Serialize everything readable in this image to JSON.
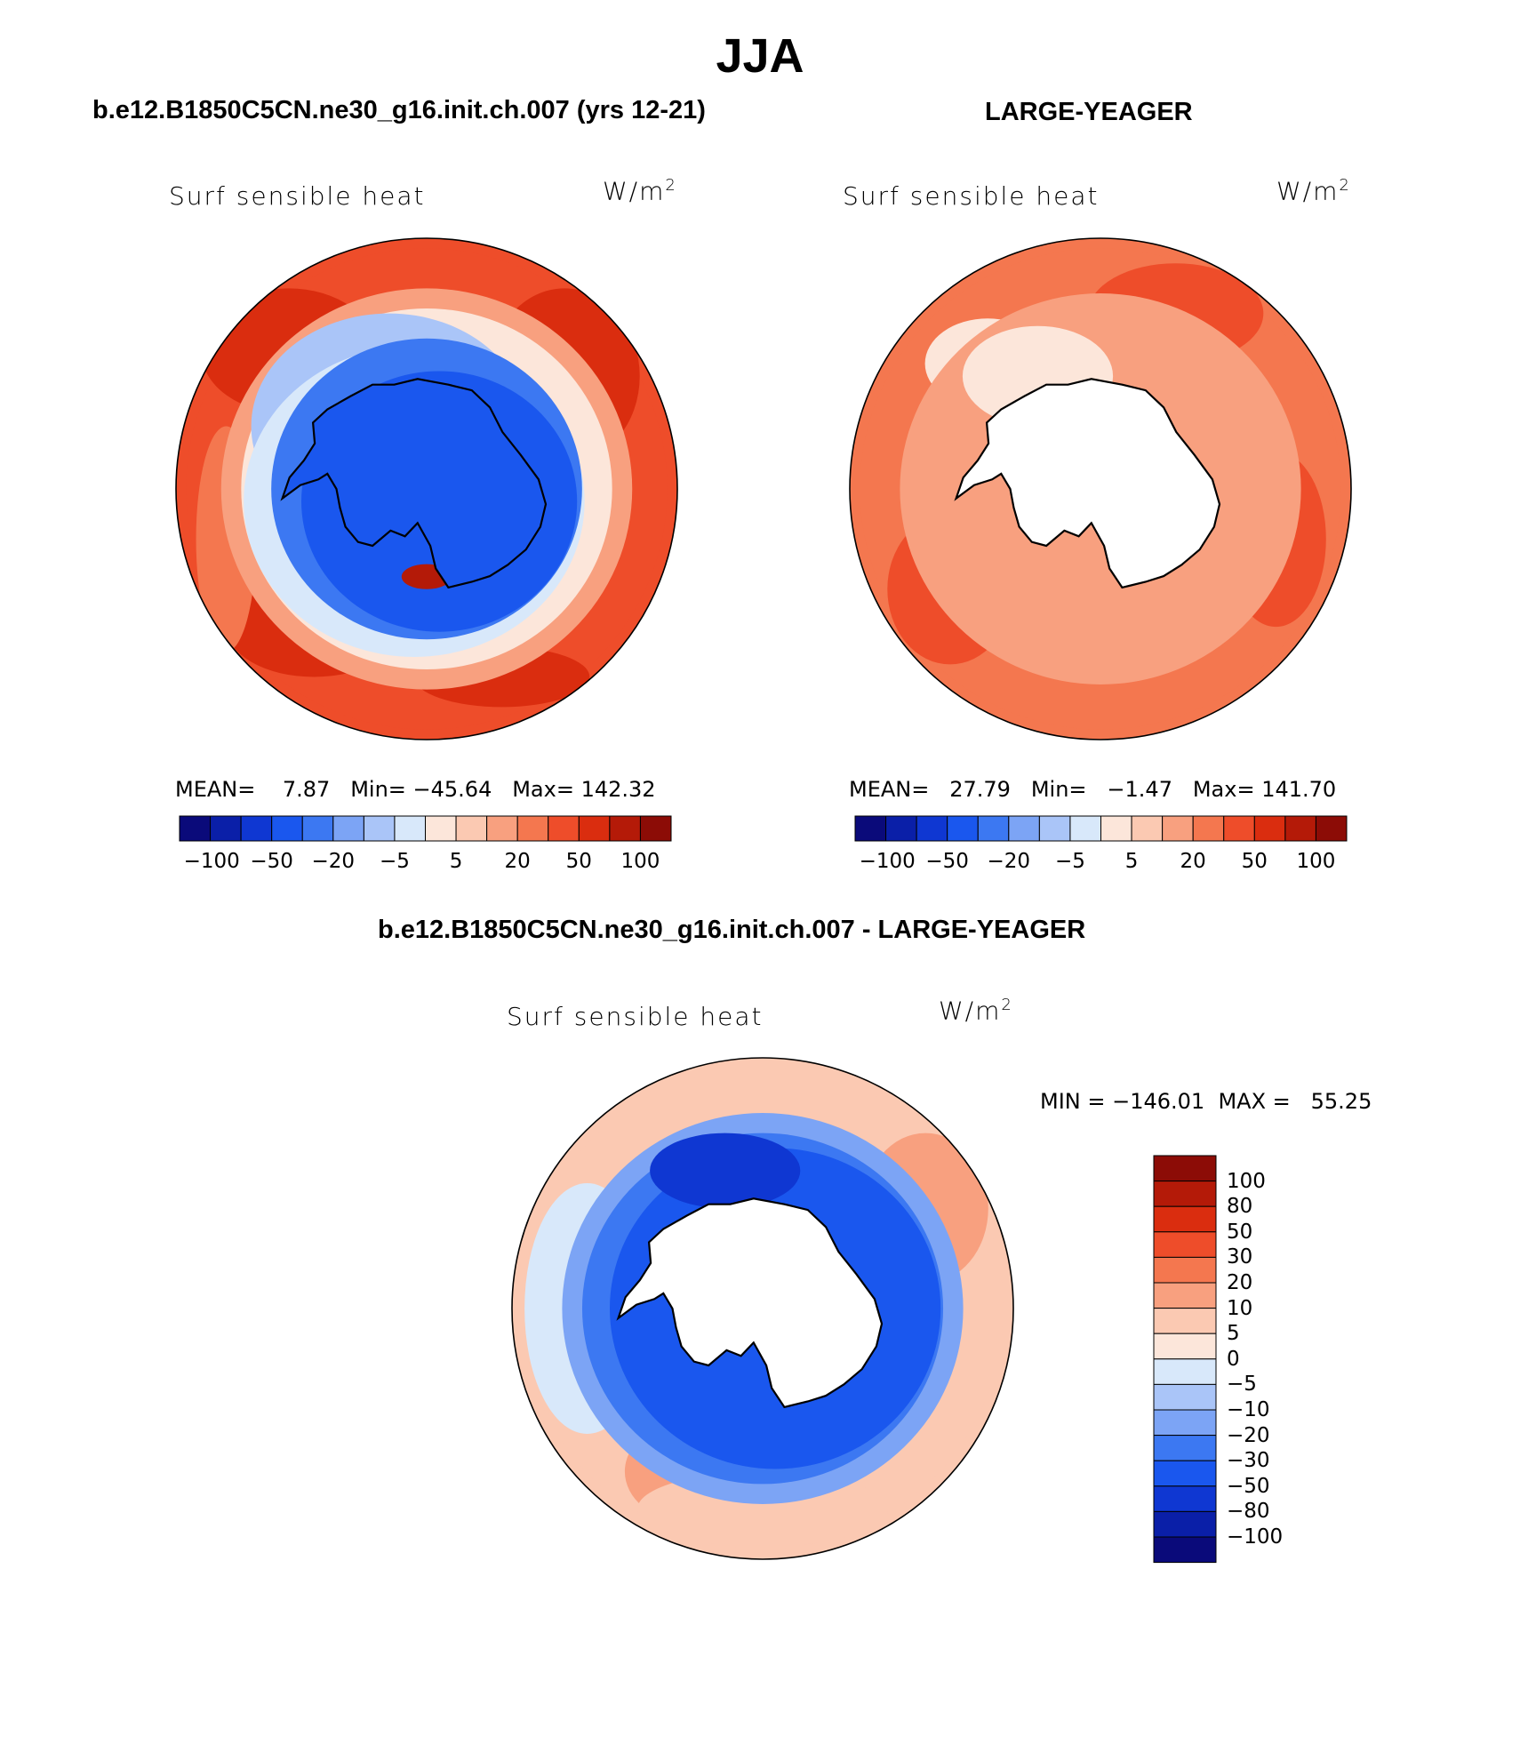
{
  "figure": {
    "season_title": "JJA",
    "colors": {
      "palette": [
        "#0a0a7a",
        "#0a1fa8",
        "#0f37d2",
        "#1a57ee",
        "#3c78f2",
        "#7ca4f5",
        "#aac5f8",
        "#d8e8fa",
        "#fce6da",
        "#fbc9b2",
        "#f8a07f",
        "#f4774f",
        "#ee4d2a",
        "#da2d0f",
        "#b41a08",
        "#8c0c06"
      ],
      "land": "#ffffff",
      "coastline": "#000000"
    }
  },
  "panels": [
    {
      "case_title": "b.e12.B1850C5CN.ne30_g16.init.ch.007 (yrs 12-21)",
      "variable": "Surf sensible heat",
      "units_base": "W/m",
      "units_exp": "2",
      "stats_text": "MEAN=    7.87   Min= −45.64   Max= 142.32",
      "colorbar_ticks": [
        "−100",
        "−50",
        "−20",
        "−5",
        "5",
        "20",
        "50",
        "100"
      ]
    },
    {
      "case_title": "LARGE-YEAGER",
      "variable": "Surf sensible heat",
      "units_base": "W/m",
      "units_exp": "2",
      "stats_text": "MEAN=   27.79   Min=   −1.47   Max= 141.70",
      "colorbar_ticks": [
        "−100",
        "−50",
        "−20",
        "−5",
        "5",
        "20",
        "50",
        "100"
      ]
    }
  ],
  "difference": {
    "case_title": "b.e12.B1850C5CN.ne30_g16.init.ch.007 - LARGE-YEAGER",
    "variable": "Surf sensible heat",
    "units_base": "W/m",
    "units_exp": "2",
    "minmax_text": "MIN = −146.01  MAX =   55.25",
    "colorbar_levels": [
      "100",
      "80",
      "50",
      "30",
      "20",
      "10",
      "5",
      "0",
      "−5",
      "−10",
      "−20",
      "−30",
      "−50",
      "−80",
      "−100"
    ],
    "colorbar_colors": [
      "#8c0c06",
      "#b41a08",
      "#da2d0f",
      "#ee4d2a",
      "#f4774f",
      "#f8a07f",
      "#fbc9b2",
      "#fce6da",
      "#d8e8fa",
      "#aac5f8",
      "#7ca4f5",
      "#3c78f2",
      "#1a57ee",
      "#0f37d2",
      "#0a1fa8",
      "#0a0a7a"
    ]
  }
}
